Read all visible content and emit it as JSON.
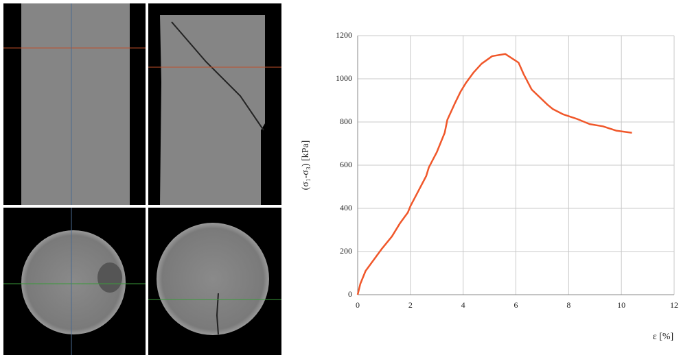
{
  "chart_data": {
    "type": "line",
    "x_label": "ε [%]",
    "y_label": "(σ₁-σ₃) [kPa]",
    "xlim": [
      0,
      12
    ],
    "xticks": [
      0,
      2,
      4,
      6,
      8,
      10,
      12
    ],
    "ylim": [
      0,
      1200
    ],
    "yticks": [
      0,
      200,
      400,
      600,
      800,
      1000,
      1200
    ],
    "grid": true,
    "x": [
      0,
      0.1,
      0.3,
      0.6,
      0.9,
      1.3,
      1.6,
      1.9,
      2.0,
      2.3,
      2.6,
      2.7,
      3.0,
      3.1,
      3.3,
      3.4,
      3.7,
      3.9,
      4.1,
      4.4,
      4.7,
      5.1,
      5.6,
      6.1,
      6.3,
      6.6,
      7.2,
      7.4,
      7.8,
      8.3,
      8.8,
      9.3,
      9.8,
      10.4
    ],
    "series": [
      {
        "color": "#f0572a",
        "values": [
          0,
          50,
          110,
          160,
          210,
          270,
          330,
          380,
          410,
          480,
          550,
          590,
          660,
          690,
          750,
          810,
          890,
          940,
          980,
          1030,
          1070,
          1105,
          1115,
          1075,
          1020,
          950,
          880,
          860,
          835,
          815,
          790,
          780,
          760,
          750
        ]
      }
    ]
  }
}
